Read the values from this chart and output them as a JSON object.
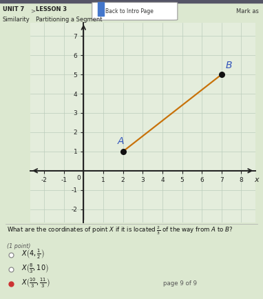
{
  "title_unit": "UNIT 7",
  "title_subject": "Similarity",
  "title_lesson": "LESSON 3",
  "title_lesson_name": "Partitioning a Segment",
  "header_button": "Back to Intro Page",
  "mark_as": "Mark as",
  "point_A": [
    2,
    1
  ],
  "point_B": [
    7,
    5
  ],
  "line_color": "#c8720a",
  "point_color": "#111111",
  "label_A_color": "#3355bb",
  "label_B_color": "#3355bb",
  "grid_color": "#bbccbb",
  "bg_color": "#dce8d0",
  "plot_bg": "#e4eddc",
  "xlim": [
    -2.7,
    8.7
  ],
  "ylim": [
    -2.7,
    7.7
  ],
  "xticks": [
    -2,
    -1,
    0,
    1,
    2,
    3,
    4,
    5,
    6,
    7,
    8
  ],
  "yticks": [
    -2,
    -1,
    0,
    1,
    2,
    3,
    4,
    5,
    6,
    7
  ],
  "question_text": "What are the coordinates of point $X$ if it is located $\\frac{2}{3}$ of the way from $A$ to $B$?",
  "sub_text": "(1 point)",
  "options": [
    {
      "text": "$X\\left(4, \\frac{1}{2}\\right)$",
      "selected": false
    },
    {
      "text": "$X\\left(\\frac{8}{3}, 10\\right)$",
      "selected": false
    },
    {
      "text": "$X\\left(\\frac{10}{3}, \\frac{11}{3}\\right)$",
      "selected": true
    }
  ],
  "page_text": "page 9 of 9",
  "figsize": [
    3.82,
    4.34
  ],
  "dpi": 100
}
